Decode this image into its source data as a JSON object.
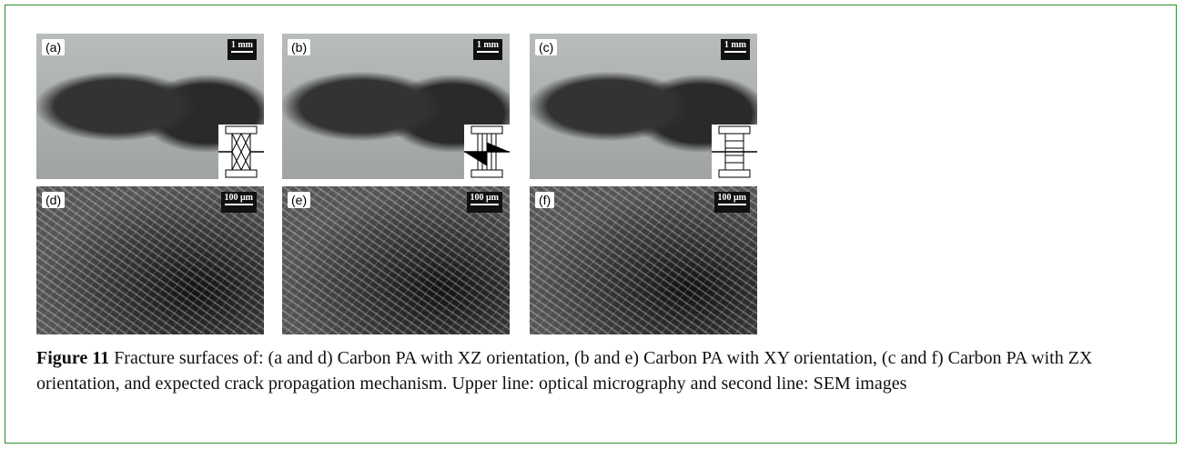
{
  "figure": {
    "panels": [
      {
        "label": "(a)",
        "scale_bar": "1 mm"
      },
      {
        "label": "(b)",
        "scale_bar": "1 mm"
      },
      {
        "label": "(c)",
        "scale_bar": "1 mm"
      },
      {
        "label": "(d)",
        "scale_bar": "100 μm"
      },
      {
        "label": "(e)",
        "scale_bar": "100 μm"
      },
      {
        "label": "(f)",
        "scale_bar": "100 μm"
      }
    ],
    "caption": {
      "label": "Figure 11",
      "text": "Fracture surfaces of: (a and d) Carbon PA with XZ orientation, (b and e) Carbon PA with XY orientation, (c and f) Carbon PA with ZX orientation, and expected crack propagation mechanism. Upper line: optical micrography and second line: SEM images"
    }
  }
}
